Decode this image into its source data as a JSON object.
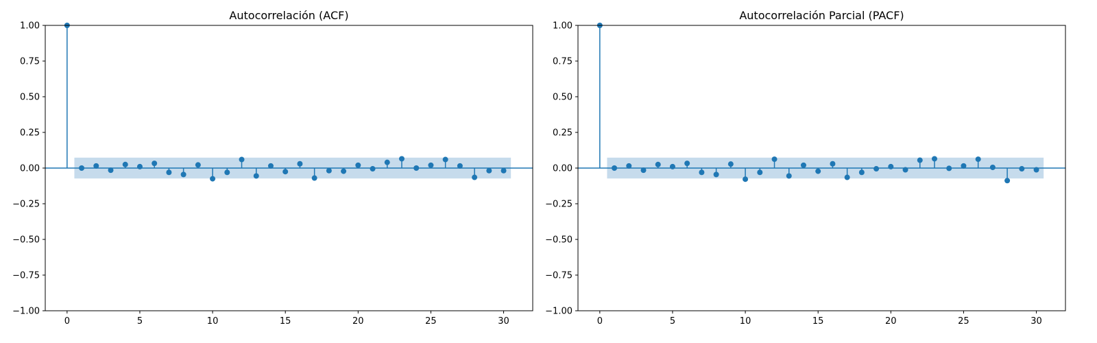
{
  "chart_data": [
    {
      "type": "stem",
      "title": "Autocorrelación (ACF)",
      "xlabel": "",
      "ylabel": "",
      "xlim": [
        -1.5,
        32.0
      ],
      "ylim": [
        -1.0,
        1.0
      ],
      "xticks": [
        0,
        5,
        10,
        15,
        20,
        25,
        30
      ],
      "yticks": [
        1.0,
        0.75,
        0.5,
        0.25,
        0.0,
        -0.25,
        -0.5,
        -0.75,
        -1.0
      ],
      "xtick_labels": [
        "0",
        "5",
        "10",
        "15",
        "20",
        "25",
        "30"
      ],
      "ytick_labels": [
        "1.00",
        "0.75",
        "0.50",
        "0.25",
        "0.00",
        "−0.25",
        "−0.50",
        "−0.75",
        "−1.00"
      ],
      "grid": false,
      "confidence_band": {
        "lag_start": 0.5,
        "lag_end": 30.5,
        "upper": 0.073,
        "lower": -0.073,
        "color": "#c6dbec"
      },
      "color": "#1f77b4",
      "lags": [
        0,
        1,
        2,
        3,
        4,
        5,
        6,
        7,
        8,
        9,
        10,
        11,
        12,
        13,
        14,
        15,
        16,
        17,
        18,
        19,
        20,
        21,
        22,
        23,
        24,
        25,
        26,
        27,
        28,
        29,
        30
      ],
      "values": [
        1.0,
        0.0,
        0.015,
        -0.015,
        0.025,
        0.01,
        0.033,
        -0.03,
        -0.045,
        0.022,
        -0.075,
        -0.03,
        0.06,
        -0.055,
        0.015,
        -0.025,
        0.03,
        -0.07,
        -0.018,
        -0.022,
        0.02,
        -0.005,
        0.04,
        0.065,
        0.0,
        0.02,
        0.06,
        0.015,
        -0.065,
        -0.018,
        -0.018
      ]
    },
    {
      "type": "stem",
      "title": "Autocorrelación Parcial (PACF)",
      "xlabel": "",
      "ylabel": "",
      "xlim": [
        -1.5,
        32.0
      ],
      "ylim": [
        -1.0,
        1.0
      ],
      "xticks": [
        0,
        5,
        10,
        15,
        20,
        25,
        30
      ],
      "yticks": [
        1.0,
        0.75,
        0.5,
        0.25,
        0.0,
        -0.25,
        -0.5,
        -0.75,
        -1.0
      ],
      "xtick_labels": [
        "0",
        "5",
        "10",
        "15",
        "20",
        "25",
        "30"
      ],
      "ytick_labels": [
        "1.00",
        "0.75",
        "0.50",
        "0.25",
        "0.00",
        "−0.25",
        "−0.50",
        "−0.75",
        "−1.00"
      ],
      "grid": false,
      "confidence_band": {
        "lag_start": 0.5,
        "lag_end": 30.5,
        "upper": 0.073,
        "lower": -0.073,
        "color": "#c6dbec"
      },
      "color": "#1f77b4",
      "lags": [
        0,
        1,
        2,
        3,
        4,
        5,
        6,
        7,
        8,
        9,
        10,
        11,
        12,
        13,
        14,
        15,
        16,
        17,
        18,
        19,
        20,
        21,
        22,
        23,
        24,
        25,
        26,
        27,
        28,
        29,
        30
      ],
      "values": [
        1.0,
        0.0,
        0.015,
        -0.015,
        0.025,
        0.01,
        0.033,
        -0.03,
        -0.045,
        0.028,
        -0.078,
        -0.03,
        0.062,
        -0.055,
        0.02,
        -0.022,
        0.03,
        -0.065,
        -0.03,
        -0.005,
        0.01,
        -0.012,
        0.055,
        0.065,
        -0.002,
        0.015,
        0.062,
        0.005,
        -0.088,
        -0.005,
        -0.012
      ]
    }
  ]
}
